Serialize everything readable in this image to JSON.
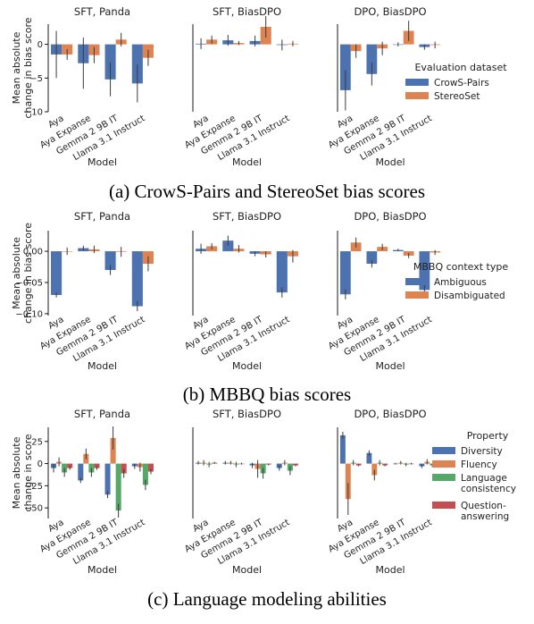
{
  "chart_data": [
    {
      "type": "bar",
      "caption": "(a)  CrowS-Pairs and StereoSet bias scores",
      "ylabel": "Mean absolute\nchange in bias score",
      "xlabel": "Model",
      "categories": [
        "Aya",
        "Aya Expanse",
        "Gemma 2 9B IT",
        "Llama 3.1 Instruct"
      ],
      "ylim": [
        -10,
        3
      ],
      "yticks": [
        -10,
        -5,
        0
      ],
      "legend": {
        "title": "Evaluation dataset",
        "entries": [
          "CrowS-Pairs",
          "StereoSet"
        ],
        "placement": "right"
      },
      "colors": [
        "#4c72b0",
        "#dd8452"
      ],
      "panels": [
        {
          "title": "SFT, Panda",
          "series": [
            {
              "name": "CrowS-Pairs",
              "values": [
                -1.5,
                -2.8,
                -5.2,
                -5.8
              ],
              "err": [
                3.5,
                3.8,
                2.5,
                2.8
              ]
            },
            {
              "name": "StereoSet",
              "values": [
                -1.5,
                -1.6,
                0.7,
                -2.0
              ],
              "err": [
                0.8,
                1.2,
                1.0,
                1.2
              ]
            }
          ]
        },
        {
          "title": "SFT, BiasDPO",
          "series": [
            {
              "name": "CrowS-Pairs",
              "values": [
                0.1,
                0.6,
                0.5,
                -0.1
              ],
              "err": [
                0.8,
                0.8,
                0.8,
                0.8
              ]
            },
            {
              "name": "StereoSet",
              "values": [
                0.7,
                0.2,
                2.6,
                0.1
              ],
              "err": [
                0.6,
                0.3,
                1.6,
                0.4
              ]
            }
          ]
        },
        {
          "title": "DPO, BiasDPO",
          "series": [
            {
              "name": "CrowS-Pairs",
              "values": [
                -6.8,
                -4.4,
                0.0,
                -0.4
              ],
              "err": [
                3.0,
                1.7,
                0.3,
                0.4
              ]
            },
            {
              "name": "StereoSet",
              "values": [
                -1.0,
                -0.6,
                2.0,
                -0.1
              ],
              "err": [
                1.0,
                1.0,
                1.5,
                0.5
              ]
            }
          ]
        }
      ]
    },
    {
      "type": "bar",
      "caption": "(b)  MBBQ bias scores",
      "ylabel": "Mean absolute\nchange in bias score",
      "xlabel": "Model",
      "categories": [
        "Aya",
        "Aya Expanse",
        "Gemma 2 9B IT",
        "Llama 3.1 Instruct"
      ],
      "ylim": [
        -0.103,
        0.033
      ],
      "yticks": [
        -0.1,
        -0.05,
        0.0
      ],
      "ytick_labels": [
        "−0.10",
        "−0.05",
        "0.00"
      ],
      "legend": {
        "title": "MBBQ context type",
        "entries": [
          "Ambiguous",
          "Disambiguated"
        ],
        "placement": "right"
      },
      "colors": [
        "#4c72b0",
        "#dd8452"
      ],
      "panels": [
        {
          "title": "SFT, Panda",
          "series": [
            {
              "name": "Ambiguous",
              "values": [
                -0.07,
                0.005,
                -0.03,
                -0.088
              ],
              "err": [
                0.004,
                0.004,
                0.008,
                0.008
              ]
            },
            {
              "name": "Disambiguated",
              "values": [
                0.0,
                0.003,
                -0.001,
                -0.02
              ],
              "err": [
                0.006,
                0.006,
                0.008,
                0.012
              ]
            }
          ]
        },
        {
          "title": "SFT, BiasDPO",
          "series": [
            {
              "name": "Ambiguous",
              "values": [
                0.004,
                0.017,
                -0.004,
                -0.066
              ],
              "err": [
                0.008,
                0.008,
                0.004,
                0.008
              ]
            },
            {
              "name": "Disambiguated",
              "values": [
                0.008,
                0.004,
                -0.005,
                -0.008
              ],
              "err": [
                0.005,
                0.006,
                0.005,
                0.01
              ]
            }
          ]
        },
        {
          "title": "DPO, BiasDPO",
          "series": [
            {
              "name": "Ambiguous",
              "values": [
                -0.069,
                -0.02,
                0.002,
                -0.062
              ],
              "err": [
                0.008,
                0.006,
                0.002,
                0.01
              ]
            },
            {
              "name": "Disambiguated",
              "values": [
                0.014,
                0.007,
                -0.007,
                -0.002
              ],
              "err": [
                0.008,
                0.005,
                0.004,
                0.004
              ]
            }
          ]
        }
      ]
    },
    {
      "type": "bar",
      "caption": "(c)  Language modeling abilities",
      "ylabel": "Mean absolute\nchange in score",
      "xlabel": "Model",
      "categories": [
        "Aya",
        "Aya Expanse",
        "Gemma 2 9B IT",
        "Llama 3.1 Instruct"
      ],
      "ylim": [
        -62,
        41
      ],
      "yticks": [
        -50,
        -25,
        0,
        25
      ],
      "legend": {
        "title": "Property",
        "entries": [
          "Diversity",
          "Fluency",
          "Language\nconsistency",
          "Question-\nanswering"
        ],
        "placement": "right"
      },
      "colors": [
        "#4c72b0",
        "#dd8452",
        "#55a868",
        "#c44e52"
      ],
      "panels": [
        {
          "title": "SFT, Panda",
          "series": [
            {
              "name": "Diversity",
              "values": [
                -5,
                -19,
                -35,
                -3
              ],
              "err": [
                5,
                3,
                4,
                3
              ]
            },
            {
              "name": "Fluency",
              "values": [
                2,
                11,
                29,
                -4
              ],
              "err": [
                5,
                6,
                13,
                5
              ]
            },
            {
              "name": "Language\nconsistency",
              "values": [
                -10,
                -10,
                -53,
                -24
              ],
              "err": [
                5,
                5,
                8,
                6
              ]
            },
            {
              "name": "Question-\nanswering",
              "values": [
                -5,
                -5,
                -11,
                -9
              ],
              "err": [
                2,
                2,
                5,
                3
              ]
            }
          ]
        },
        {
          "title": "SFT, BiasDPO",
          "series": [
            {
              "name": "Diversity",
              "values": [
                1,
                1,
                -2,
                -5
              ],
              "err": [
                2,
                2,
                3,
                3
              ]
            },
            {
              "name": "Fluency",
              "values": [
                1,
                1,
                -6,
                1
              ],
              "err": [
                3,
                2,
                10,
                3
              ]
            },
            {
              "name": "Language\nconsistency",
              "values": [
                -1,
                -1,
                -11,
                -8
              ],
              "err": [
                3,
                3,
                6,
                5
              ]
            },
            {
              "name": "Question-\nanswering",
              "values": [
                1,
                0,
                -1,
                -2
              ],
              "err": [
                1,
                1,
                1,
                1
              ]
            }
          ]
        },
        {
          "title": "DPO, BiasDPO",
          "series": [
            {
              "name": "Diversity",
              "values": [
                32,
                12,
                0,
                -3
              ],
              "err": [
                4,
                3,
                1,
                2
              ]
            },
            {
              "name": "Fluency",
              "values": [
                -40,
                -13,
                1,
                2
              ],
              "err": [
                18,
                6,
                2,
                3
              ]
            },
            {
              "name": "Language\nconsistency",
              "values": [
                1,
                1,
                -1,
                -2
              ],
              "err": [
                3,
                3,
                2,
                2
              ]
            },
            {
              "name": "Question-\nanswering",
              "values": [
                -2,
                -2,
                0,
                -1
              ],
              "err": [
                1,
                1,
                1,
                1
              ]
            }
          ]
        }
      ]
    }
  ]
}
